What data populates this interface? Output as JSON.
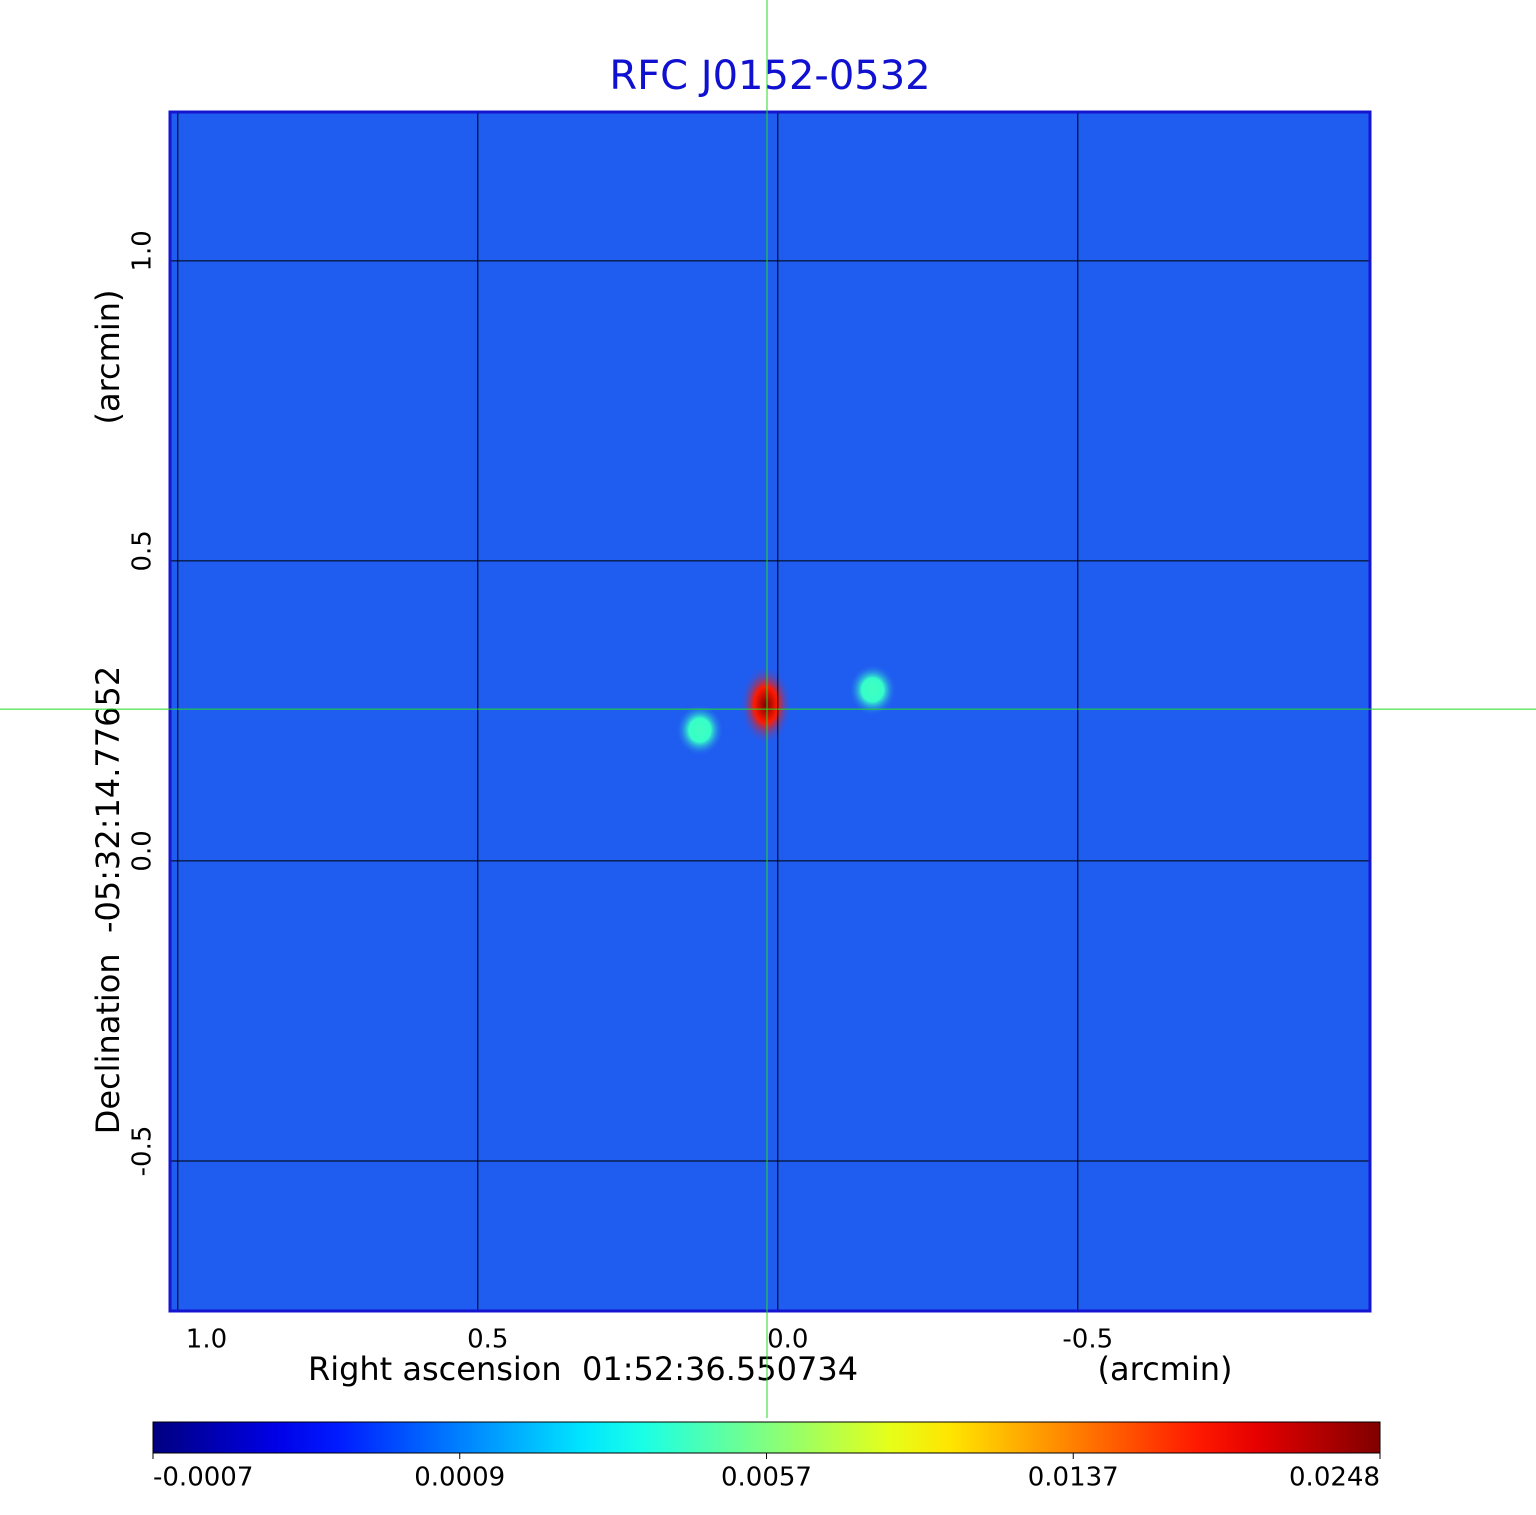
{
  "chart_data": {
    "type": "image",
    "title": "RFC J0152-0532",
    "xlabel": "Right ascension  01:52:36.550734",
    "xunit": "(arcmin)",
    "ylabel": "Declination  -05:32:14.77652",
    "yunit": "(arcmin)",
    "xlim": [
      1.013,
      -0.987
    ],
    "ylim": [
      -0.75,
      1.248
    ],
    "xticks": [
      {
        "value": 1,
        "label": "1.0"
      },
      0.5,
      {
        "value": 0,
        "label": "0.0"
      },
      -0.5
    ],
    "yticks": [
      {
        "value": 1,
        "label": "1.0"
      },
      0.5,
      {
        "value": 0,
        "label": "0.0"
      },
      -0.5
    ],
    "grid": true,
    "plot_color": "#1f5cf0",
    "crosshair": {
      "x": 0.018,
      "y": 0.253,
      "color": "#22dd22"
    },
    "sources": {
      "x": [
        0.02,
        0.13,
        -0.158
      ],
      "y": [
        0.26,
        0.218,
        0.285
      ],
      "values": [
        0.0248,
        0.0045,
        0.0045
      ]
    },
    "colorbar_ticks": [
      -0.0007,
      0.0009,
      0.0057,
      0.0137,
      0.0248
    ]
  }
}
